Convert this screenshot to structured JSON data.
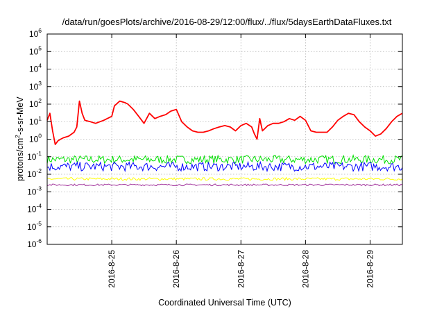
{
  "chart_data": {
    "type": "line",
    "title": "/data/run/goesPlots/archive/2016-08-29/12:00/flux/../flux/5daysEarthDataFluxes.txt",
    "xlabel": "Coordinated Universal Time (UTC)",
    "ylabel": "protons/cm²-s-sr-MeV",
    "ylabel_main": "protons/cm",
    "ylabel_sup": "2",
    "ylabel_rest": "-s-sr-MeV",
    "yscale": "log",
    "ylim": [
      1e-06,
      1000000.0
    ],
    "xlim": [
      "2016-08-24T00:00",
      "2016-08-29T12:00"
    ],
    "grid": true,
    "x_ticks": [
      {
        "date": "2016-08-25",
        "label": "2016-8-25"
      },
      {
        "date": "2016-08-26",
        "label": "2016-8-26"
      },
      {
        "date": "2016-08-27",
        "label": "2016-8-27"
      },
      {
        "date": "2016-08-28",
        "label": "2016-8-28"
      },
      {
        "date": "2016-08-29",
        "label": "2016-8-29"
      }
    ],
    "y_ticks": [
      {
        "value": 1e-06,
        "base": "10",
        "exp": "-6"
      },
      {
        "value": 1e-05,
        "base": "10",
        "exp": "-5"
      },
      {
        "value": 0.0001,
        "base": "10",
        "exp": "-4"
      },
      {
        "value": 0.001,
        "base": "10",
        "exp": "-3"
      },
      {
        "value": 0.01,
        "base": "10",
        "exp": "-2"
      },
      {
        "value": 0.1,
        "base": "10",
        "exp": "-1"
      },
      {
        "value": 1,
        "base": "10",
        "exp": "0"
      },
      {
        "value": 10,
        "base": "10",
        "exp": "1"
      },
      {
        "value": 100,
        "base": "10",
        "exp": "2"
      },
      {
        "value": 1000,
        "base": "10",
        "exp": "3"
      },
      {
        "value": 10000,
        "base": "10",
        "exp": "4"
      },
      {
        "value": 100000,
        "base": "10",
        "exp": "5"
      },
      {
        "value": 1000000,
        "base": "10",
        "exp": "6"
      }
    ],
    "series": [
      {
        "color": "#ff0000",
        "x": [
          "2016-08-24T00:00",
          "2016-08-24T01:00",
          "2016-08-24T02:00",
          "2016-08-24T03:00",
          "2016-08-24T04:00",
          "2016-08-24T05:00",
          "2016-08-24T06:00",
          "2016-08-24T08:00",
          "2016-08-24T10:00",
          "2016-08-24T11:00",
          "2016-08-24T12:00",
          "2016-08-24T13:00",
          "2016-08-24T14:00",
          "2016-08-24T16:00",
          "2016-08-24T18:00",
          "2016-08-24T21:00",
          "2016-08-25T00:00",
          "2016-08-25T01:00",
          "2016-08-25T03:00",
          "2016-08-25T05:00",
          "2016-08-25T06:00",
          "2016-08-25T08:00",
          "2016-08-25T10:00",
          "2016-08-25T12:00",
          "2016-08-25T14:00",
          "2016-08-25T16:00",
          "2016-08-25T18:00",
          "2016-08-25T20:00",
          "2016-08-25T22:00",
          "2016-08-26T00:00",
          "2016-08-26T02:00",
          "2016-08-26T04:00",
          "2016-08-26T06:00",
          "2016-08-26T08:00",
          "2016-08-26T10:00",
          "2016-08-26T12:00",
          "2016-08-26T14:00",
          "2016-08-26T16:00",
          "2016-08-26T18:00",
          "2016-08-26T20:00",
          "2016-08-26T22:00",
          "2016-08-27T00:00",
          "2016-08-27T02:00",
          "2016-08-27T04:00",
          "2016-08-27T05:00",
          "2016-08-27T06:00",
          "2016-08-27T07:00",
          "2016-08-27T08:00",
          "2016-08-27T10:00",
          "2016-08-27T12:00",
          "2016-08-27T14:00",
          "2016-08-27T16:00",
          "2016-08-27T18:00",
          "2016-08-27T20:00",
          "2016-08-27T22:00",
          "2016-08-28T00:00",
          "2016-08-28T02:00",
          "2016-08-28T04:00",
          "2016-08-28T06:00",
          "2016-08-28T08:00",
          "2016-08-28T10:00",
          "2016-08-28T12:00",
          "2016-08-28T14:00",
          "2016-08-28T16:00",
          "2016-08-28T18:00",
          "2016-08-28T20:00",
          "2016-08-28T22:00",
          "2016-08-29T00:00",
          "2016-08-29T02:00",
          "2016-08-29T04:00",
          "2016-08-29T06:00",
          "2016-08-29T08:00",
          "2016-08-29T10:00",
          "2016-08-29T12:00"
        ],
        "y": [
          12,
          30,
          3,
          0.5,
          0.8,
          1.0,
          1.2,
          1.5,
          2.5,
          5,
          150,
          30,
          12,
          10,
          8,
          12,
          20,
          80,
          150,
          120,
          100,
          50,
          20,
          8,
          30,
          15,
          20,
          25,
          40,
          50,
          10,
          5,
          3,
          2.5,
          2.5,
          3,
          4,
          5,
          6,
          5,
          3,
          6,
          8,
          5,
          2,
          1,
          15,
          3,
          6,
          8,
          8,
          10,
          15,
          12,
          20,
          12,
          3,
          2.5,
          2.5,
          2.5,
          5,
          12,
          20,
          30,
          25,
          10,
          5,
          3,
          1.5,
          2,
          4,
          10,
          20,
          30
        ]
      },
      {
        "color": "#00e000",
        "band": [
          0.04,
          0.12
        ]
      },
      {
        "color": "#00bfbf",
        "band": [
          0.008,
          0.02
        ]
      },
      {
        "color": "#0000ff",
        "band": [
          0.015,
          0.05
        ]
      },
      {
        "color": "#ffff00",
        "band": [
          0.0045,
          0.0065
        ]
      },
      {
        "color": "#a0309a",
        "band": [
          0.0022,
          0.0028
        ]
      }
    ]
  }
}
